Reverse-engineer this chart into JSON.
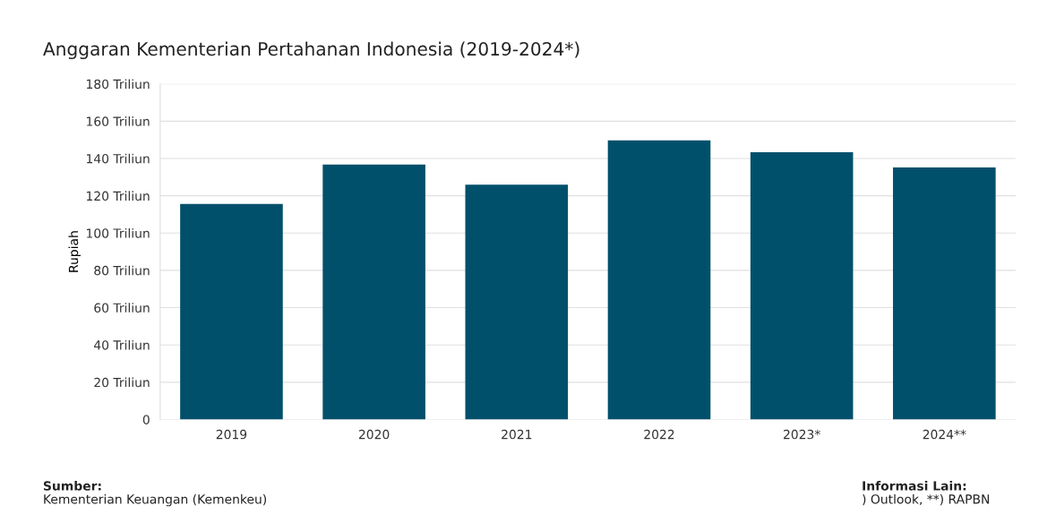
{
  "chart_data": {
    "type": "bar",
    "title": "Anggaran Kementerian Pertahanan Indonesia (2019-2024*)",
    "ylabel": "Rupiah",
    "categories": [
      "2019",
      "2020",
      "2021",
      "2022",
      "2023*",
      "2024**"
    ],
    "values": [
      115.6,
      136.7,
      125.9,
      149.7,
      143.4,
      135.2
    ],
    "color": "#01506b",
    "ylim": [
      0,
      180
    ],
    "yticks": [
      {
        "value": 0,
        "label": "0"
      },
      {
        "value": 20,
        "label": "20 Triliun"
      },
      {
        "value": 40,
        "label": "40 Triliun"
      },
      {
        "value": 60,
        "label": "60 Triliun"
      },
      {
        "value": 80,
        "label": "80 Triliun"
      },
      {
        "value": 100,
        "label": "100 Triliun"
      },
      {
        "value": 120,
        "label": "120 Triliun"
      },
      {
        "value": 140,
        "label": "140 Triliun"
      },
      {
        "value": 160,
        "label": "160 Triliun"
      },
      {
        "value": 180,
        "label": "180 Triliun"
      }
    ],
    "grid": "y",
    "annotations": [
      "Sumber:",
      "Kementerian Keuangan (Kemenkeu)",
      "Informasi Lain:",
      ") Outlook, **) RAPBN"
    ]
  }
}
